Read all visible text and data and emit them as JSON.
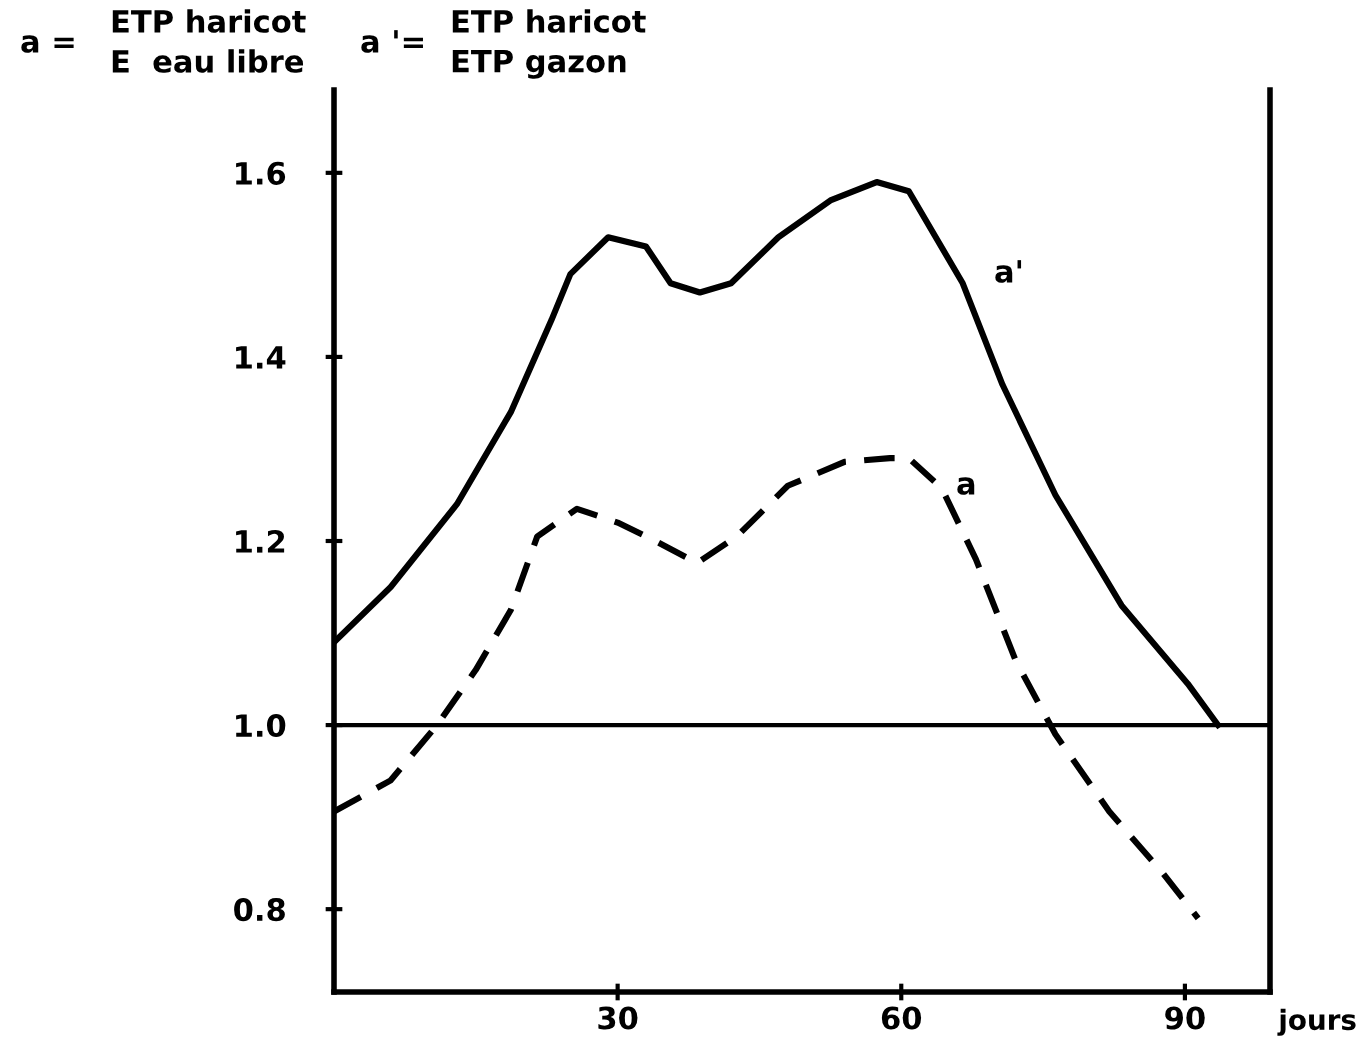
{
  "chart_data": {
    "type": "line",
    "xlabel": "jours",
    "annotations": [
      "a =",
      "ETP haricot",
      "E  eau libre",
      "a '=",
      "ETP haricot",
      "ETP gazon",
      "a'",
      "a"
    ],
    "series": [
      {
        "color": "#000000",
        "line_style": "solid",
        "x": [
          0,
          6,
          13,
          18.7,
          23,
          25,
          29,
          33,
          35.6,
          38.7,
          42,
          47,
          52.5,
          57.4,
          60.8,
          66.5,
          70.7,
          76.3,
          83.3,
          90.3,
          93.5
        ],
        "values": [
          1.09,
          1.15,
          1.24,
          1.34,
          1.44,
          1.49,
          1.53,
          1.52,
          1.48,
          1.47,
          1.48,
          1.53,
          1.57,
          1.59,
          1.58,
          1.48,
          1.37,
          1.25,
          1.13,
          1.045,
          1.0
        ]
      },
      {
        "color": "#000000",
        "line_style": "dashed",
        "x": [
          0,
          6,
          10.9,
          15,
          18.7,
          21.5,
          25.7,
          30,
          34,
          38.4,
          42.6,
          48,
          54,
          58.8,
          60.8,
          64.3,
          67.9,
          72.1,
          76.3,
          82,
          87.6,
          91.4
        ],
        "values": [
          0.906,
          0.94,
          1.0,
          1.06,
          1.125,
          1.205,
          1.235,
          1.22,
          1.2,
          1.176,
          1.205,
          1.26,
          1.286,
          1.29,
          1.29,
          1.257,
          1.18,
          1.07,
          0.99,
          0.906,
          0.84,
          0.79
        ]
      }
    ],
    "xlim": [
      0,
      99
    ],
    "xticks": [
      30,
      60,
      90
    ],
    "ylim": [
      0.71,
      1.69
    ],
    "yticks": [
      0.8,
      {
        "value": 1.0,
        "label": "1.0"
      },
      1.2,
      1.4,
      1.6
    ],
    "ref_lines": [
      {
        "axis": "y",
        "value": 1.0,
        "color": "#000000"
      }
    ],
    "grid": false,
    "legend": false
  }
}
